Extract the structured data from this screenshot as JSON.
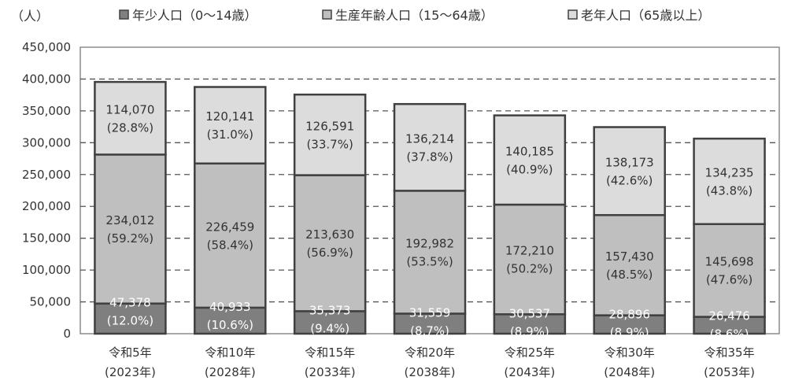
{
  "chart_data": {
    "type": "bar",
    "stacked": true,
    "y_unit": "（人）",
    "ylim": [
      0,
      450000
    ],
    "yticks": [
      "0",
      "50,000",
      "100,000",
      "150,000",
      "200,000",
      "250,000",
      "300,000",
      "350,000",
      "400,000",
      "450,000"
    ],
    "ytick_values": [
      0,
      50000,
      100000,
      150000,
      200000,
      250000,
      300000,
      350000,
      400000,
      450000
    ],
    "grid": "horizontal-dashed",
    "legend_position": "top",
    "categories": [
      [
        "令和5年",
        "(2023年)"
      ],
      [
        "令和10年",
        "(2028年)"
      ],
      [
        "令和15年",
        "(2033年)"
      ],
      [
        "令和20年",
        "(2038年)"
      ],
      [
        "令和25年",
        "(2043年)"
      ],
      [
        "令和30年",
        "(2048年)"
      ],
      [
        "令和35年",
        "(2053年)"
      ]
    ],
    "series": [
      {
        "name": "年少人口（0～14歳）",
        "color": "#7f7f7f",
        "values": [
          47378,
          40933,
          35373,
          31559,
          30537,
          28896,
          26476
        ],
        "labels": [
          "47,378",
          "40,933",
          "35,373",
          "31,559",
          "30,537",
          "28,896",
          "26,476"
        ],
        "pct": [
          "(12.0%)",
          "(10.6%)",
          "(9.4%)",
          "(8.7%)",
          "(8.9%)",
          "(8.9%)",
          "(8.6%)"
        ]
      },
      {
        "name": "生産年齢人口（15～64歳）",
        "color": "#bfbfbf",
        "values": [
          234012,
          226459,
          213630,
          192982,
          172210,
          157430,
          145698
        ],
        "labels": [
          "234,012",
          "226,459",
          "213,630",
          "192,982",
          "172,210",
          "157,430",
          "145,698"
        ],
        "pct": [
          "(59.2%)",
          "(58.4%)",
          "(56.9%)",
          "(53.5%)",
          "(50.2%)",
          "(48.5%)",
          "(47.6%)"
        ]
      },
      {
        "name": "老年人口（65歳以上）",
        "color": "#dcdcdc",
        "values": [
          114070,
          120141,
          126591,
          136214,
          140185,
          138173,
          134235
        ],
        "labels": [
          "114,070",
          "120,141",
          "126,591",
          "136,214",
          "140,185",
          "138,173",
          "134,235"
        ],
        "pct": [
          "(28.8%)",
          "(31.0%)",
          "(33.7%)",
          "(37.8%)",
          "(40.9%)",
          "(42.6%)",
          "(43.8%)"
        ]
      }
    ]
  }
}
